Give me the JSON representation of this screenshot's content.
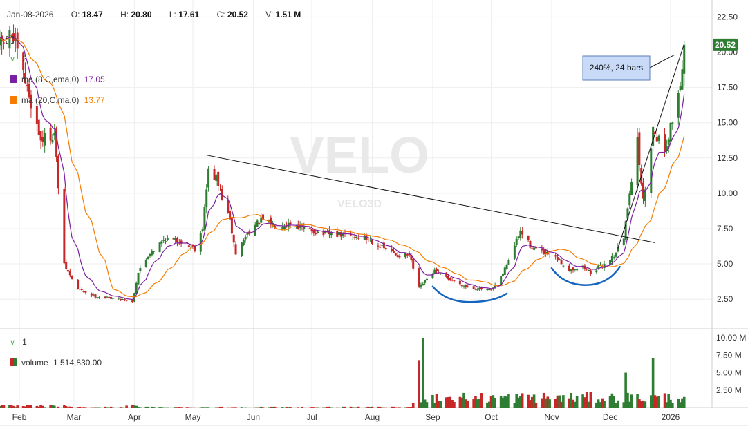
{
  "header": {
    "date": "Jan-08-2026",
    "open_label": "O:",
    "open": "18.47",
    "high_label": "H:",
    "high": "20.80",
    "low_label": "L:",
    "low": "17.61",
    "close_label": "C:",
    "close": "20.52",
    "volume_label": "V:",
    "volume": "1.51 M"
  },
  "indicators": {
    "pane_count": "2",
    "ma8": {
      "label": "ma (8,C,ema,0)",
      "value": "17.05",
      "color": "#7b1fa2"
    },
    "ma20": {
      "label": "ma (20,C,ma,0)",
      "value": "13.77",
      "color": "#f57c00"
    }
  },
  "volume_pane": {
    "pane_count": "1",
    "label": "volume",
    "value": "1,514,830.00"
  },
  "watermark": {
    "symbol": "VELO",
    "name": "VELO3D"
  },
  "price_tag": "20.52",
  "annotation": "240%, 24 bars",
  "colors": {
    "up": "#2e7d32",
    "down": "#c62828",
    "ma8": "#7b1fa2",
    "ma20": "#f57c00",
    "annotation_arc": "#1565c0",
    "price_tag": "#2e7d32"
  },
  "chart_data": [
    {
      "type": "candlestick",
      "title": "",
      "x_tick_labels": [
        "Feb",
        "Mar",
        "Apr",
        "May",
        "Jun",
        "Jul",
        "Aug",
        "Sep",
        "Oct",
        "Nov",
        "Dec",
        "2026"
      ],
      "y_tick_labels": [
        "2.50",
        "5.00",
        "7.50",
        "10.00",
        "12.50",
        "15.00",
        "17.50",
        "20.00",
        "22.50"
      ],
      "ylim": [
        0.5,
        23.5
      ],
      "y_scale": "linear",
      "grid": true,
      "last_candle": {
        "date": "Jan-08-2026",
        "open": 18.47,
        "high": 20.8,
        "low": 17.61,
        "close": 20.52
      },
      "close_path": [
        [
          "2025-01-22",
          20.5
        ],
        [
          "2025-01-28",
          21.3
        ],
        [
          "2025-02-05",
          17.4
        ],
        [
          "2025-02-12",
          13.8
        ],
        [
          "2025-02-19",
          14.2
        ],
        [
          "2025-02-24",
          4.9
        ],
        [
          "2025-03-03",
          3.2
        ],
        [
          "2025-03-12",
          2.7
        ],
        [
          "2025-03-26",
          2.5
        ],
        [
          "2025-03-31",
          2.3
        ],
        [
          "2025-04-03",
          4.4
        ],
        [
          "2025-04-09",
          5.8
        ],
        [
          "2025-04-17",
          6.8
        ],
        [
          "2025-04-25",
          6.6
        ],
        [
          "2025-05-02",
          6.1
        ],
        [
          "2025-05-06",
          7.6
        ],
        [
          "2025-05-09",
          11.6
        ],
        [
          "2025-05-13",
          11.0
        ],
        [
          "2025-05-20",
          8.0
        ],
        [
          "2025-05-23",
          5.7
        ],
        [
          "2025-05-29",
          7.2
        ],
        [
          "2025-06-05",
          8.1
        ],
        [
          "2025-06-13",
          7.7
        ],
        [
          "2025-06-20",
          7.9
        ],
        [
          "2025-06-27",
          7.5
        ],
        [
          "2025-07-08",
          7.1
        ],
        [
          "2025-07-22",
          7.0
        ],
        [
          "2025-07-31",
          6.7
        ],
        [
          "2025-08-07",
          6.1
        ],
        [
          "2025-08-14",
          5.6
        ],
        [
          "2025-08-20",
          5.6
        ],
        [
          "2025-08-25",
          3.3
        ],
        [
          "2025-09-02",
          4.5
        ],
        [
          "2025-09-10",
          3.9
        ],
        [
          "2025-09-18",
          3.4
        ],
        [
          "2025-09-26",
          3.2
        ],
        [
          "2025-10-01",
          3.1
        ],
        [
          "2025-10-06",
          4.0
        ],
        [
          "2025-10-13",
          6.3
        ],
        [
          "2025-10-16",
          7.3
        ],
        [
          "2025-10-21",
          6.3
        ],
        [
          "2025-10-27",
          5.8
        ],
        [
          "2025-11-04",
          5.3
        ],
        [
          "2025-11-10",
          4.6
        ],
        [
          "2025-11-17",
          4.8
        ],
        [
          "2025-11-21",
          4.4
        ],
        [
          "2025-11-28",
          5.0
        ],
        [
          "2025-12-03",
          5.6
        ],
        [
          "2025-12-08",
          6.8
        ],
        [
          "2025-12-11",
          10.2
        ],
        [
          "2025-12-15",
          13.6
        ],
        [
          "2025-12-18",
          9.4
        ],
        [
          "2025-12-23",
          14.6
        ],
        [
          "2025-12-29",
          13.1
        ],
        [
          "2026-01-02",
          15.2
        ],
        [
          "2026-01-06",
          17.8
        ],
        [
          "2026-01-08",
          20.52
        ]
      ],
      "annotations": {
        "trendline": {
          "from": [
            "2025-05-08",
            12.7
          ],
          "to": [
            "2025-12-24",
            6.5
          ]
        },
        "measure": {
          "label": "240%, 24 bars",
          "from": [
            "2025-12-05",
            6.1
          ],
          "to": [
            "2026-01-08",
            20.6
          ]
        },
        "arcs": [
          {
            "from": [
              "2025-09-01",
              3.4
            ],
            "to": [
              "2025-10-09",
              2.9
            ],
            "bottom": 2.3
          },
          {
            "from": [
              "2025-11-01",
              4.7
            ],
            "to": [
              "2025-12-06",
              4.8
            ],
            "bottom": 3.5
          }
        ]
      }
    },
    {
      "type": "bar",
      "title": "",
      "series_label": "volume",
      "y_tick_labels": [
        "2.50 M",
        "5.00 M",
        "7.50 M",
        "10.00 M"
      ],
      "ylim": [
        0,
        10.7
      ],
      "unit": "M",
      "notable_bars": [
        {
          "date": "2025-08-27",
          "value": 10.0
        },
        {
          "date": "2025-08-25",
          "value": 6.8
        },
        {
          "date": "2025-12-23",
          "value": 7.1
        },
        {
          "date": "2025-12-09",
          "value": 5.0
        },
        {
          "date": "2026-01-08",
          "value": 1.51
        }
      ]
    }
  ]
}
